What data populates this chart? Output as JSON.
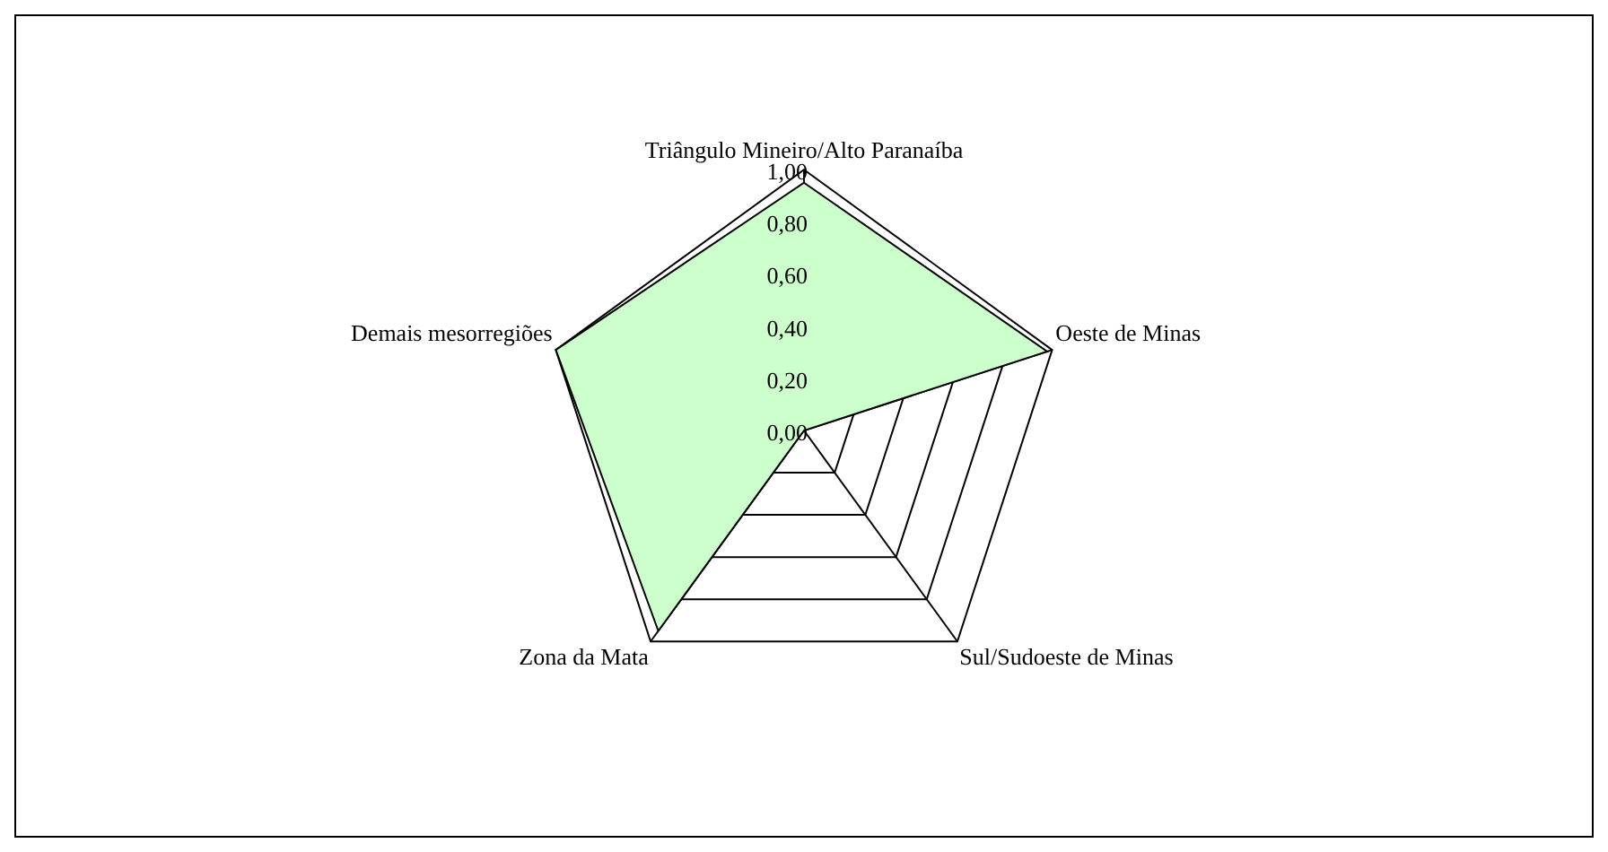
{
  "chart_data": {
    "type": "radar",
    "categories": [
      "Triângulo Mineiro/Alto Paranaíba",
      "Oeste de Minas",
      "Sul/Sudoeste de Minas",
      "Zona da Mata",
      "Demais mesorregiões"
    ],
    "series": [
      {
        "color": "#ccffcc",
        "values": [
          0.95,
          0.98,
          0,
          0.95,
          1.0
        ]
      }
    ],
    "ylim": [
      0,
      1
    ],
    "yticks": [
      {
        "value": 0,
        "label": "0,00"
      },
      {
        "value": 0.2,
        "label": "0,20"
      },
      {
        "value": 0.4,
        "label": "0,40"
      },
      {
        "value": 0.6,
        "label": "0,60"
      },
      {
        "value": 0.8,
        "label": "0,80"
      },
      {
        "value": 1,
        "label": "1,00"
      }
    ],
    "grid": true,
    "legend": false,
    "marker": "none"
  }
}
